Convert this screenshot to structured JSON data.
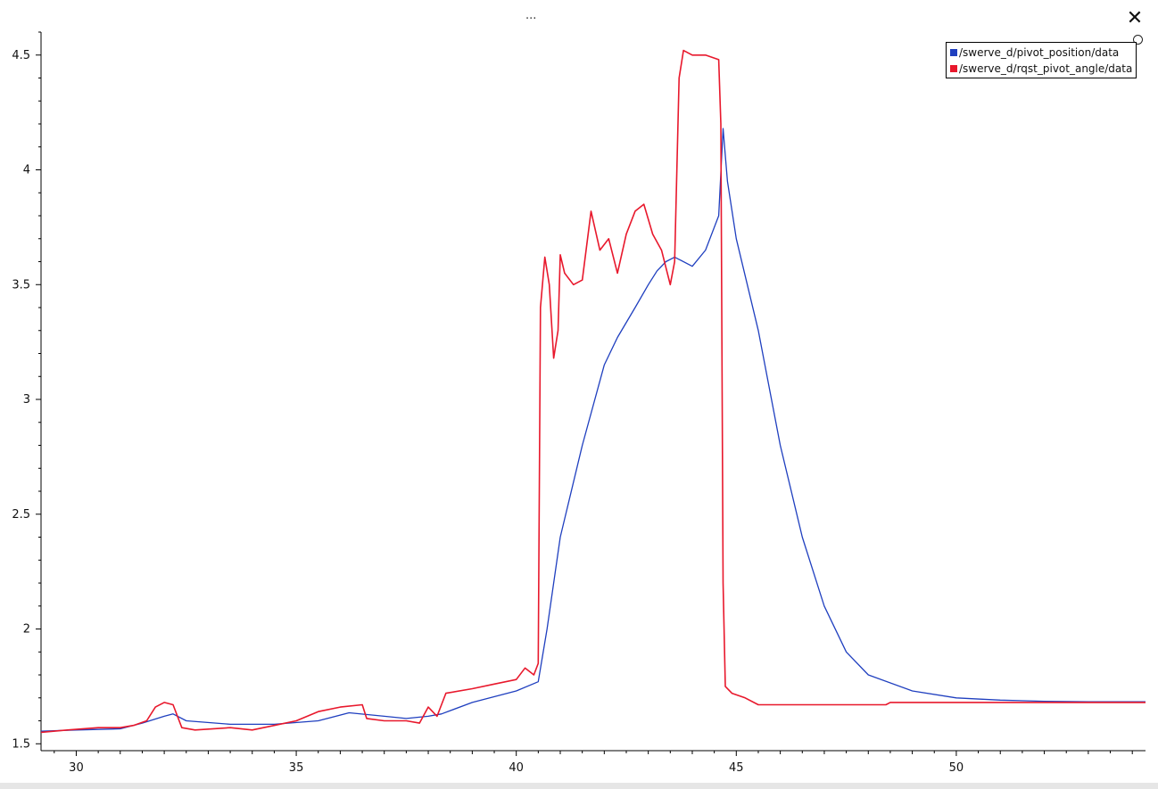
{
  "window": {
    "title": "...",
    "close_label": "✕"
  },
  "colors": {
    "series_blue": "#1f3fbf",
    "series_red": "#e8182c",
    "axis": "#000000"
  },
  "chart_data": {
    "type": "line",
    "title": "",
    "xlabel": "",
    "ylabel": "",
    "xlim": [
      29.2,
      54.3
    ],
    "ylim": [
      1.47,
      4.6
    ],
    "xticks": [
      30,
      35,
      40,
      45,
      50
    ],
    "xtick_labels": [
      "30",
      "35",
      "40",
      "45",
      "50"
    ],
    "yticks": [
      1.5,
      2,
      2.5,
      3,
      3.5,
      4,
      4.5
    ],
    "ytick_labels": [
      "1.5",
      "2",
      "2.5",
      "3",
      "3.5",
      "4",
      "4.5"
    ],
    "grid": false,
    "legend_position": "top-right",
    "series": [
      {
        "name": "/swerve_d/pivot_position/data",
        "color": "#1f3fbf",
        "x": [
          29.2,
          30.0,
          31.0,
          31.5,
          32.0,
          32.2,
          32.5,
          33.5,
          34.5,
          35.5,
          36.2,
          37.0,
          37.5,
          38.0,
          38.3,
          39.0,
          40.0,
          40.5,
          40.7,
          41.0,
          41.5,
          42.0,
          42.3,
          42.7,
          43.0,
          43.2,
          43.4,
          43.6,
          44.0,
          44.3,
          44.6,
          44.7,
          44.8,
          45.0,
          45.5,
          46.0,
          46.5,
          47.0,
          47.5,
          48.0,
          49.0,
          50.0,
          51.0,
          52.0,
          53.0,
          54.3
        ],
        "values": [
          1.555,
          1.56,
          1.565,
          1.59,
          1.62,
          1.63,
          1.6,
          1.585,
          1.585,
          1.6,
          1.635,
          1.62,
          1.61,
          1.62,
          1.63,
          1.68,
          1.73,
          1.77,
          2.0,
          2.4,
          2.8,
          3.15,
          3.27,
          3.4,
          3.5,
          3.56,
          3.6,
          3.62,
          3.58,
          3.65,
          3.8,
          4.18,
          3.95,
          3.7,
          3.3,
          2.8,
          2.4,
          2.1,
          1.9,
          1.8,
          1.73,
          1.7,
          1.69,
          1.685,
          1.683,
          1.683
        ]
      },
      {
        "name": "/swerve_d/rqst_pivot_angle/data",
        "color": "#e8182c",
        "x": [
          29.2,
          29.8,
          30.5,
          31.0,
          31.3,
          31.6,
          31.8,
          32.0,
          32.2,
          32.4,
          32.7,
          33.5,
          34.0,
          34.5,
          35.0,
          35.5,
          36.0,
          36.5,
          36.6,
          37.0,
          37.5,
          37.8,
          38.0,
          38.2,
          38.4,
          39.0,
          39.5,
          40.0,
          40.2,
          40.4,
          40.5,
          40.55,
          40.65,
          40.75,
          40.85,
          40.95,
          41.0,
          41.1,
          41.3,
          41.5,
          41.7,
          41.9,
          42.1,
          42.3,
          42.5,
          42.7,
          42.9,
          43.1,
          43.3,
          43.5,
          43.6,
          43.7,
          43.8,
          44.0,
          44.3,
          44.6,
          44.65,
          44.7,
          44.75,
          44.9,
          45.2,
          45.5,
          46.5,
          47.5,
          48.4,
          48.5,
          49.5,
          50.5,
          51.5,
          52.5,
          53.5,
          54.3
        ],
        "values": [
          1.55,
          1.56,
          1.57,
          1.57,
          1.58,
          1.6,
          1.66,
          1.68,
          1.67,
          1.57,
          1.56,
          1.57,
          1.56,
          1.58,
          1.6,
          1.64,
          1.66,
          1.67,
          1.61,
          1.6,
          1.6,
          1.59,
          1.66,
          1.62,
          1.72,
          1.74,
          1.76,
          1.78,
          1.83,
          1.8,
          1.85,
          3.4,
          3.62,
          3.5,
          3.18,
          3.3,
          3.63,
          3.55,
          3.5,
          3.52,
          3.82,
          3.65,
          3.7,
          3.55,
          3.72,
          3.82,
          3.85,
          3.72,
          3.65,
          3.5,
          3.6,
          4.4,
          4.52,
          4.5,
          4.5,
          4.48,
          4.2,
          2.2,
          1.75,
          1.72,
          1.7,
          1.67,
          1.67,
          1.67,
          1.67,
          1.68,
          1.68,
          1.68,
          1.68,
          1.68,
          1.68,
          1.68
        ]
      }
    ]
  }
}
